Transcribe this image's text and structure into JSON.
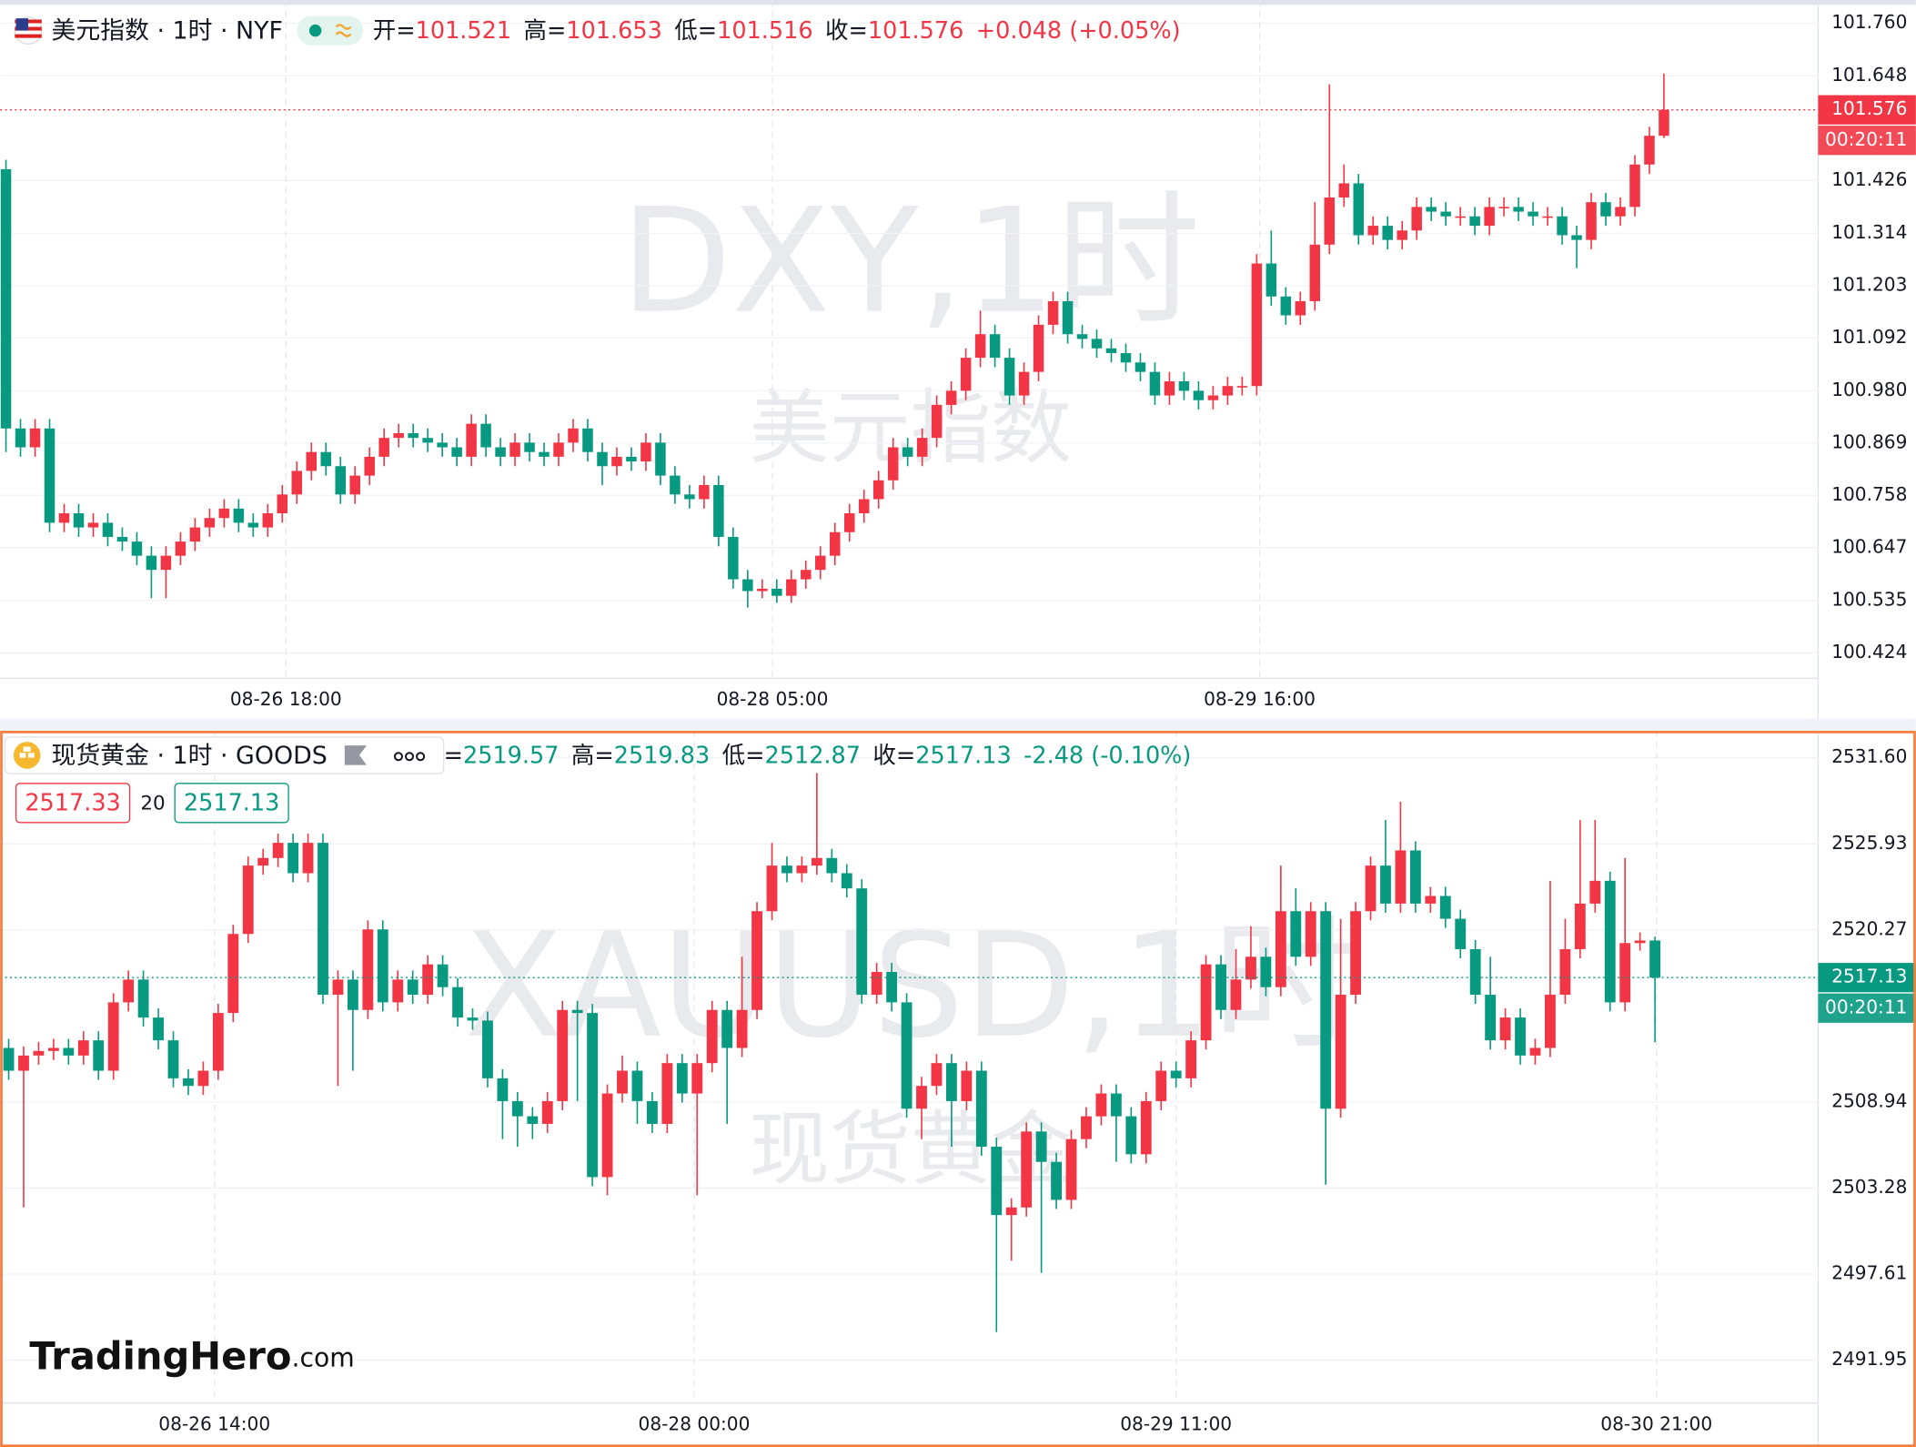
{
  "brand": {
    "name": "TradingHero",
    "suffix": ".com"
  },
  "chart_data": [
    {
      "type": "candlestick",
      "title": "美元指数 · 1时 · NYF",
      "ohlc_labels": [
        "开=",
        "高=",
        "低=",
        "收="
      ],
      "ohlc_values": [
        101.521,
        101.653,
        101.516,
        101.576
      ],
      "change": "+0.048 (+0.05%)",
      "watermark": "DXY,1时",
      "watermark_sub": "美元指数",
      "up_color": "#f23645",
      "down_color": "#089981",
      "grid": true,
      "last_price": 101.576,
      "countdown": "00:20:11",
      "xlim": [
        -0.4,
        124.6
      ],
      "xticks": [
        {
          "value": 19.25,
          "label": "08-26 18:00"
        },
        {
          "value": 52.7,
          "label": "08-28 05:00"
        },
        {
          "value": 86.2,
          "label": "08-29 16:00"
        }
      ],
      "ylim": [
        100.37,
        101.809
      ],
      "yticks": [
        {
          "value": 101.76,
          "label": "101.760"
        },
        101.648,
        101.426,
        101.314,
        101.203,
        101.092,
        {
          "value": 100.98,
          "label": "100.980"
        },
        100.869,
        100.758,
        100.647,
        100.535,
        100.424
      ],
      "open": [
        101.45,
        100.9,
        100.86,
        100.9,
        100.7,
        100.72,
        100.69,
        100.7,
        100.67,
        100.66,
        100.63,
        100.6,
        100.63,
        100.66,
        100.69,
        100.71,
        100.73,
        100.7,
        100.69,
        100.72,
        100.76,
        100.81,
        100.85,
        100.82,
        100.76,
        100.8,
        100.84,
        100.88,
        100.89,
        100.88,
        100.87,
        100.86,
        100.84,
        100.91,
        100.86,
        100.84,
        100.87,
        100.85,
        100.84,
        100.87,
        100.9,
        100.85,
        100.82,
        100.84,
        100.83,
        100.87,
        100.8,
        100.76,
        100.75,
        100.78,
        100.67,
        100.58,
        100.555,
        100.56,
        100.545,
        100.58,
        100.6,
        100.63,
        100.68,
        100.72,
        100.75,
        100.79,
        100.86,
        100.84,
        100.88,
        100.95,
        100.98,
        101.05,
        101.1,
        101.05,
        100.97,
        101.02,
        101.12,
        101.17,
        101.1,
        101.09,
        101.07,
        101.06,
        101.04,
        101.02,
        100.97,
        101.0,
        100.98,
        100.96,
        100.97,
        100.99,
        100.99,
        101.25,
        101.18,
        101.14,
        101.17,
        101.29,
        101.39,
        101.42,
        101.31,
        101.33,
        101.3,
        101.32,
        101.37,
        101.36,
        101.35,
        101.35,
        101.33,
        101.37,
        101.37,
        101.36,
        101.35,
        101.35,
        101.31,
        101.3,
        101.38,
        101.35,
        101.37,
        101.46,
        101.521
      ],
      "high": [
        101.47,
        100.92,
        100.92,
        100.92,
        100.74,
        100.74,
        100.72,
        100.72,
        100.69,
        100.68,
        100.65,
        100.65,
        100.68,
        100.71,
        100.73,
        100.75,
        100.75,
        100.72,
        100.74,
        100.78,
        100.83,
        100.87,
        100.87,
        100.84,
        100.82,
        100.86,
        100.9,
        100.91,
        100.91,
        100.9,
        100.89,
        100.88,
        100.93,
        100.93,
        100.88,
        100.89,
        100.89,
        100.87,
        100.89,
        100.92,
        100.92,
        100.87,
        100.86,
        100.86,
        100.89,
        100.89,
        100.82,
        100.78,
        100.8,
        100.8,
        100.69,
        100.6,
        100.58,
        100.58,
        100.6,
        100.62,
        100.65,
        100.7,
        100.74,
        100.77,
        100.81,
        100.88,
        100.88,
        100.9,
        100.97,
        101.0,
        101.07,
        101.15,
        101.12,
        101.07,
        101.04,
        101.14,
        101.19,
        101.19,
        101.12,
        101.11,
        101.09,
        101.08,
        101.06,
        101.04,
        101.02,
        101.02,
        101.0,
        100.99,
        101.01,
        101.01,
        101.27,
        101.32,
        101.2,
        101.19,
        101.38,
        101.63,
        101.46,
        101.44,
        101.35,
        101.35,
        101.34,
        101.39,
        101.39,
        101.38,
        101.37,
        101.37,
        101.39,
        101.39,
        101.39,
        101.38,
        101.37,
        101.37,
        101.33,
        101.4,
        101.4,
        101.39,
        101.48,
        101.54,
        101.653
      ],
      "low": [
        100.85,
        100.84,
        100.84,
        100.68,
        100.68,
        100.67,
        100.67,
        100.65,
        100.64,
        100.61,
        100.54,
        100.54,
        100.61,
        100.64,
        100.67,
        100.69,
        100.68,
        100.67,
        100.67,
        100.7,
        100.74,
        100.79,
        100.8,
        100.74,
        100.74,
        100.78,
        100.82,
        100.86,
        100.86,
        100.85,
        100.84,
        100.82,
        100.82,
        100.84,
        100.82,
        100.82,
        100.83,
        100.82,
        100.82,
        100.85,
        100.83,
        100.78,
        100.8,
        100.81,
        100.81,
        100.78,
        100.74,
        100.73,
        100.73,
        100.65,
        100.56,
        100.52,
        100.54,
        100.53,
        100.53,
        100.56,
        100.58,
        100.61,
        100.66,
        100.7,
        100.73,
        100.77,
        100.82,
        100.82,
        100.86,
        100.93,
        100.96,
        101.03,
        101.03,
        100.95,
        100.95,
        101.0,
        101.1,
        101.08,
        101.07,
        101.05,
        101.04,
        101.02,
        101.0,
        100.95,
        100.95,
        100.96,
        100.94,
        100.94,
        100.95,
        100.97,
        100.97,
        101.16,
        101.12,
        101.12,
        101.15,
        101.27,
        101.37,
        101.29,
        101.29,
        101.28,
        101.28,
        101.3,
        101.34,
        101.33,
        101.33,
        101.31,
        101.31,
        101.35,
        101.34,
        101.33,
        101.33,
        101.29,
        101.24,
        101.28,
        101.33,
        101.33,
        101.35,
        101.44,
        101.516
      ],
      "close": [
        100.9,
        100.86,
        100.9,
        100.7,
        100.72,
        100.69,
        100.7,
        100.67,
        100.66,
        100.63,
        100.6,
        100.63,
        100.66,
        100.69,
        100.71,
        100.73,
        100.7,
        100.69,
        100.72,
        100.76,
        100.81,
        100.85,
        100.82,
        100.76,
        100.8,
        100.84,
        100.88,
        100.89,
        100.88,
        100.87,
        100.86,
        100.84,
        100.91,
        100.86,
        100.84,
        100.87,
        100.85,
        100.84,
        100.87,
        100.9,
        100.85,
        100.82,
        100.84,
        100.83,
        100.87,
        100.8,
        100.76,
        100.75,
        100.78,
        100.67,
        100.58,
        100.555,
        100.56,
        100.545,
        100.58,
        100.6,
        100.63,
        100.68,
        100.72,
        100.75,
        100.79,
        100.86,
        100.84,
        100.88,
        100.95,
        100.98,
        101.05,
        101.1,
        101.05,
        100.97,
        101.02,
        101.12,
        101.17,
        101.1,
        101.09,
        101.07,
        101.06,
        101.04,
        101.02,
        100.97,
        101.0,
        100.98,
        100.96,
        100.97,
        100.99,
        100.99,
        101.25,
        101.18,
        101.14,
        101.17,
        101.29,
        101.39,
        101.42,
        101.31,
        101.33,
        101.3,
        101.32,
        101.37,
        101.36,
        101.35,
        101.35,
        101.33,
        101.37,
        101.37,
        101.36,
        101.35,
        101.35,
        101.31,
        101.3,
        101.38,
        101.35,
        101.37,
        101.46,
        101.521,
        101.576
      ]
    },
    {
      "type": "candlestick",
      "title": "现货黄金 · 1时 · GOODS",
      "ohlc_labels": [
        "=",
        "高=",
        "低=",
        "收="
      ],
      "ohlc_values": [
        2519.57,
        2519.83,
        2512.87,
        2517.13
      ],
      "change": "-2.48 (-0.10%)",
      "order_boxes": [
        "2517.33",
        "20",
        "2517.13"
      ],
      "watermark": "XAUUSD,1时",
      "watermark_sub": "现货黄金",
      "up_color": "#f23645",
      "down_color": "#089981",
      "grid": true,
      "last_price": 2517.13,
      "countdown": "00:20:11",
      "xlim": [
        -0.57,
        120.9
      ],
      "xticks": [
        {
          "value": 13.75,
          "label": "08-26 14:00"
        },
        {
          "value": 45.8,
          "label": "08-28 00:00"
        },
        {
          "value": 78,
          "label": "08-29 11:00"
        },
        {
          "value": 110.1,
          "label": "08-30 21:00"
        }
      ],
      "ylim": [
        2489.13,
        2533.37
      ],
      "yticks": [
        {
          "value": 2531.6,
          "label": "2531.60"
        },
        2525.93,
        2520.27,
        2508.94,
        2503.28,
        2497.61,
        2491.95
      ],
      "open": [
        2512.5,
        2511.0,
        2512.0,
        2512.3,
        2512.5,
        2512.0,
        2513.0,
        2511.0,
        2515.5,
        2517.0,
        2514.5,
        2513.0,
        2510.5,
        2510.0,
        2511.0,
        2514.8,
        2520.0,
        2524.5,
        2525.0,
        2526.0,
        2524.0,
        2526.0,
        2516.0,
        2517.0,
        2515.0,
        2520.3,
        2515.5,
        2517.0,
        2516.0,
        2518.0,
        2516.5,
        2514.5,
        2514.3,
        2510.5,
        2509.0,
        2508.0,
        2507.5,
        2509.0,
        2515.0,
        2514.8,
        2504.0,
        2509.5,
        2511.0,
        2509.0,
        2507.5,
        2511.5,
        2509.5,
        2511.5,
        2515.0,
        2512.5,
        2515.0,
        2521.5,
        2524.5,
        2524.0,
        2524.5,
        2525.0,
        2524.0,
        2523.0,
        2516.0,
        2517.5,
        2515.5,
        2508.5,
        2510.0,
        2511.5,
        2509.0,
        2511.0,
        2506.0,
        2501.5,
        2502.0,
        2507.0,
        2505.0,
        2502.5,
        2506.5,
        2508.0,
        2509.5,
        2508.0,
        2505.5,
        2509.0,
        2511.0,
        2510.5,
        2513.0,
        2518.0,
        2515.0,
        2517.0,
        2518.5,
        2516.5,
        2521.5,
        2518.5,
        2521.5,
        2508.5,
        2516.0,
        2521.5,
        2524.5,
        2522.0,
        2525.5,
        2522.0,
        2522.5,
        2521.0,
        2519.0,
        2516.0,
        2513.0,
        2514.5,
        2512.0,
        2512.5,
        2516.0,
        2519.0,
        2522.0,
        2523.5,
        2515.5,
        2519.4,
        2519.57
      ],
      "high": [
        2513.1,
        2512.6,
        2512.9,
        2513.1,
        2513.1,
        2513.6,
        2513.6,
        2516.1,
        2517.6,
        2517.6,
        2515.1,
        2513.6,
        2511.1,
        2511.6,
        2515.4,
        2520.6,
        2525.1,
        2525.6,
        2526.6,
        2526.6,
        2526.6,
        2526.6,
        2517.6,
        2517.6,
        2520.9,
        2520.9,
        2517.6,
        2517.6,
        2518.6,
        2518.6,
        2517.1,
        2515.1,
        2514.9,
        2511.1,
        2509.6,
        2508.6,
        2509.6,
        2515.6,
        2515.6,
        2515.4,
        2510.1,
        2512.0,
        2511.6,
        2509.6,
        2512.1,
        2512.1,
        2512.1,
        2515.6,
        2515.6,
        2518.5,
        2522.1,
        2526.0,
        2525.1,
        2525.1,
        2530.6,
        2525.6,
        2524.6,
        2523.6,
        2518.1,
        2518.1,
        2516.1,
        2510.6,
        2512.1,
        2512.1,
        2511.6,
        2511.6,
        2506.6,
        2502.6,
        2507.6,
        2507.6,
        2505.6,
        2507.1,
        2508.6,
        2510.1,
        2510.1,
        2508.6,
        2509.6,
        2511.6,
        2511.6,
        2513.6,
        2518.6,
        2518.6,
        2519.0,
        2520.5,
        2519.1,
        2524.5,
        2523.0,
        2522.1,
        2522.1,
        2521.0,
        2522.1,
        2525.1,
        2527.5,
        2528.7,
        2526.1,
        2523.1,
        2523.1,
        2521.6,
        2519.6,
        2518.5,
        2515.1,
        2515.1,
        2513.1,
        2523.5,
        2521.0,
        2527.5,
        2527.5,
        2524.1,
        2525.0,
        2520.1,
        2519.83
      ],
      "low": [
        2510.4,
        2502.0,
        2511.4,
        2511.7,
        2511.4,
        2511.4,
        2510.4,
        2510.4,
        2514.9,
        2513.9,
        2512.4,
        2509.9,
        2509.4,
        2509.4,
        2510.4,
        2514.2,
        2519.4,
        2523.9,
        2524.4,
        2523.4,
        2523.4,
        2515.4,
        2510.0,
        2511.0,
        2514.4,
        2514.9,
        2514.9,
        2515.4,
        2515.4,
        2515.9,
        2513.9,
        2513.7,
        2509.9,
        2506.5,
        2506.0,
        2506.5,
        2506.9,
        2508.4,
        2509.0,
        2503.4,
        2502.8,
        2508.9,
        2507.5,
        2506.9,
        2506.9,
        2508.9,
        2502.8,
        2510.9,
        2507.5,
        2511.9,
        2514.4,
        2520.9,
        2523.4,
        2523.4,
        2523.9,
        2523.4,
        2522.4,
        2515.4,
        2515.4,
        2514.9,
        2507.9,
        2506.5,
        2509.4,
        2506.0,
        2508.4,
        2505.4,
        2493.8,
        2498.5,
        2501.4,
        2497.7,
        2501.9,
        2501.9,
        2505.9,
        2507.4,
        2505.0,
        2504.9,
        2504.9,
        2508.4,
        2509.9,
        2509.9,
        2512.4,
        2514.4,
        2514.4,
        2516.4,
        2515.9,
        2515.9,
        2517.9,
        2517.9,
        2503.5,
        2507.9,
        2515.4,
        2520.9,
        2521.4,
        2521.4,
        2521.4,
        2521.4,
        2520.4,
        2518.4,
        2515.4,
        2512.4,
        2512.4,
        2511.4,
        2511.4,
        2511.9,
        2515.4,
        2518.4,
        2521.4,
        2514.9,
        2514.9,
        2518.9,
        2512.87
      ],
      "close": [
        2511.0,
        2512.0,
        2512.3,
        2512.5,
        2512.0,
        2513.0,
        2511.0,
        2515.5,
        2517.0,
        2514.5,
        2513.0,
        2510.5,
        2510.0,
        2511.0,
        2514.8,
        2520.0,
        2524.5,
        2525.0,
        2526.0,
        2524.0,
        2526.0,
        2516.0,
        2517.0,
        2515.0,
        2520.3,
        2515.5,
        2517.0,
        2516.0,
        2518.0,
        2516.5,
        2514.5,
        2514.3,
        2510.5,
        2509.0,
        2508.0,
        2507.5,
        2509.0,
        2515.0,
        2514.8,
        2504.0,
        2509.5,
        2511.0,
        2509.0,
        2507.5,
        2511.5,
        2509.5,
        2511.5,
        2515.0,
        2512.5,
        2515.0,
        2521.5,
        2524.5,
        2524.0,
        2524.5,
        2525.0,
        2524.0,
        2523.0,
        2516.0,
        2517.5,
        2515.5,
        2508.5,
        2510.0,
        2511.5,
        2509.0,
        2511.0,
        2506.0,
        2501.5,
        2502.0,
        2507.0,
        2505.0,
        2502.5,
        2506.5,
        2508.0,
        2509.5,
        2508.0,
        2505.5,
        2509.0,
        2511.0,
        2510.5,
        2513.0,
        2518.0,
        2515.0,
        2517.0,
        2518.5,
        2516.5,
        2521.5,
        2518.5,
        2521.5,
        2508.5,
        2516.0,
        2521.5,
        2524.5,
        2522.0,
        2525.5,
        2522.0,
        2522.5,
        2521.0,
        2519.0,
        2516.0,
        2513.0,
        2514.5,
        2512.0,
        2512.5,
        2516.0,
        2519.0,
        2522.0,
        2523.5,
        2515.5,
        2519.4,
        2519.57,
        2517.13
      ]
    }
  ]
}
